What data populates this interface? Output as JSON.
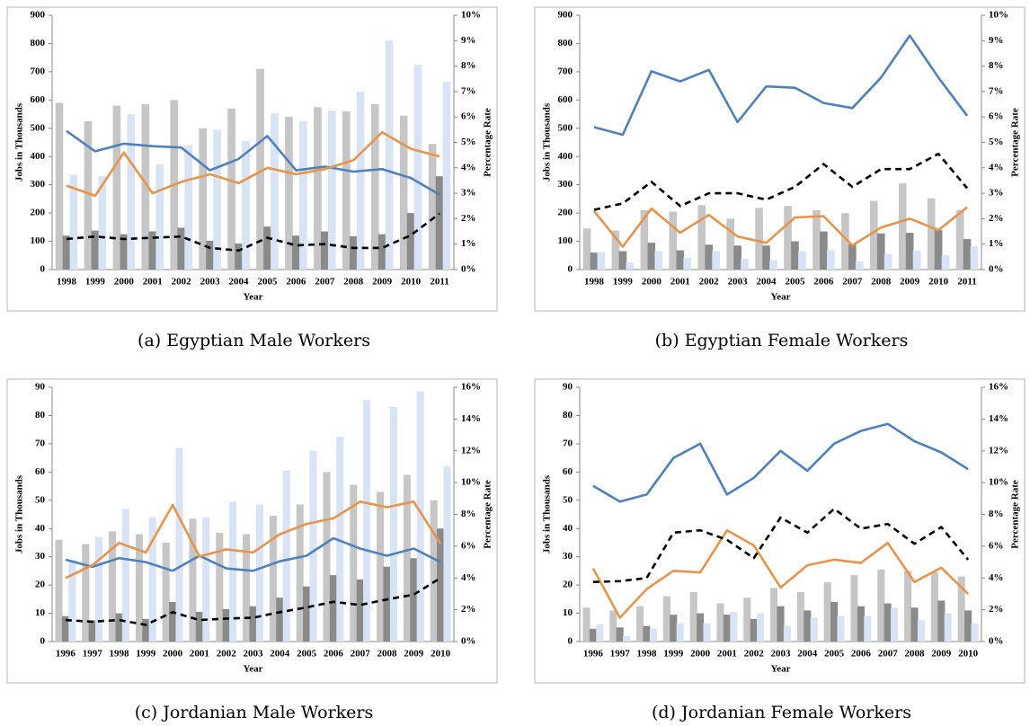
{
  "chart_data": [
    {
      "type": "combo",
      "caption": "(a) Egyptian Male Workers",
      "xlabel": "Year",
      "ylabel": "Jobs in Thousands",
      "y2label": "Percentage Rate",
      "categories": [
        "1998",
        "1999",
        "2000",
        "2001",
        "2002",
        "2003",
        "2004",
        "2005",
        "2006",
        "2007",
        "2008",
        "2009",
        "2010",
        "2011"
      ],
      "ylim": [
        0,
        900
      ],
      "yticks": [
        0,
        100,
        200,
        300,
        400,
        500,
        600,
        700,
        800,
        900
      ],
      "y2lim": [
        0,
        10
      ],
      "y2ticks": [
        {
          "value": 0,
          "label": "0%"
        },
        {
          "value": 1,
          "label": "1%"
        },
        {
          "value": 2,
          "label": "2%"
        },
        {
          "value": 3,
          "label": "3%"
        },
        {
          "value": 4,
          "label": "4%"
        },
        {
          "value": 5,
          "label": "5%"
        },
        {
          "value": 6,
          "label": "6%"
        },
        {
          "value": 7,
          "label": "7%"
        },
        {
          "value": 8,
          "label": "8%"
        },
        {
          "value": 9,
          "label": "9%"
        },
        {
          "value": 10,
          "label": "10%"
        }
      ],
      "grid": false,
      "series": [
        {
          "type": "bar",
          "color": "#c6c6c6",
          "values": [
            590,
            525,
            580,
            585,
            600,
            500,
            570,
            710,
            540,
            575,
            560,
            585,
            545,
            445
          ]
        },
        {
          "type": "bar",
          "color": "#8a8a8a",
          "values": [
            120,
            138,
            125,
            135,
            148,
            102,
            92,
            152,
            120,
            135,
            118,
            125,
            200,
            330
          ]
        },
        {
          "type": "bar",
          "color": "#d8e3f5",
          "values": [
            335,
            330,
            550,
            372,
            440,
            495,
            455,
            553,
            525,
            562,
            630,
            810,
            725,
            665
          ]
        },
        {
          "type": "line",
          "axis": "y2",
          "color": "#4f81bd",
          "values": [
            5.45,
            4.65,
            4.95,
            4.85,
            4.8,
            3.9,
            4.35,
            5.25,
            3.9,
            4.05,
            3.85,
            3.95,
            3.6,
            2.95
          ]
        },
        {
          "type": "line",
          "axis": "y2",
          "color": "#e8944a",
          "values": [
            3.3,
            2.9,
            4.6,
            3.0,
            3.45,
            3.75,
            3.4,
            4.0,
            3.75,
            3.95,
            4.3,
            5.4,
            4.75,
            4.45
          ]
        },
        {
          "type": "line",
          "axis": "y2",
          "color": "#000000",
          "dash": true,
          "values": [
            1.2,
            1.3,
            1.2,
            1.25,
            1.3,
            0.85,
            0.75,
            1.25,
            0.95,
            1.0,
            0.85,
            0.85,
            1.35,
            2.2
          ]
        }
      ]
    },
    {
      "type": "combo",
      "caption": "(b) Egyptian Female Workers",
      "xlabel": "Year",
      "ylabel": "Jobs in Thousands",
      "y2label": "Percentage Rate",
      "categories": [
        "1998",
        "1999",
        "2000",
        "2001",
        "2002",
        "2003",
        "2004",
        "2005",
        "2006",
        "2007",
        "2008",
        "2009",
        "2010",
        "2011"
      ],
      "ylim": [
        0,
        900
      ],
      "yticks": [
        0,
        100,
        200,
        300,
        400,
        500,
        600,
        700,
        800,
        900
      ],
      "y2lim": [
        0,
        10
      ],
      "y2ticks": [
        {
          "value": 0,
          "label": "0%"
        },
        {
          "value": 1,
          "label": "1%"
        },
        {
          "value": 2,
          "label": "2%"
        },
        {
          "value": 3,
          "label": "3%"
        },
        {
          "value": 4,
          "label": "4%"
        },
        {
          "value": 5,
          "label": "5%"
        },
        {
          "value": 6,
          "label": "6%"
        },
        {
          "value": 7,
          "label": "7%"
        },
        {
          "value": 8,
          "label": "8%"
        },
        {
          "value": 9,
          "label": "9%"
        },
        {
          "value": 10,
          "label": "10%"
        }
      ],
      "grid": false,
      "series": [
        {
          "type": "bar",
          "color": "#c6c6c6",
          "values": [
            145,
            138,
            210,
            205,
            228,
            180,
            218,
            225,
            210,
            200,
            243,
            305,
            252,
            210
          ]
        },
        {
          "type": "bar",
          "color": "#8a8a8a",
          "values": [
            60,
            65,
            95,
            68,
            88,
            85,
            85,
            100,
            135,
            90,
            128,
            130,
            140,
            108
          ]
        },
        {
          "type": "bar",
          "color": "#d8e3f5",
          "values": [
            62,
            25,
            65,
            42,
            65,
            38,
            32,
            65,
            68,
            28,
            55,
            68,
            52,
            82
          ]
        },
        {
          "type": "line",
          "axis": "y2",
          "color": "#4f81bd",
          "values": [
            5.6,
            5.3,
            7.8,
            7.4,
            7.85,
            5.8,
            7.2,
            7.15,
            6.55,
            6.35,
            7.55,
            9.2,
            7.55,
            6.05
          ]
        },
        {
          "type": "line",
          "axis": "y2",
          "color": "#e8944a",
          "values": [
            2.3,
            0.9,
            2.4,
            1.45,
            2.15,
            1.3,
            1.05,
            2.05,
            2.1,
            0.95,
            1.65,
            2.0,
            1.55,
            2.45
          ]
        },
        {
          "type": "line",
          "axis": "y2",
          "color": "#000000",
          "dash": true,
          "values": [
            2.35,
            2.6,
            3.45,
            2.5,
            3.0,
            3.0,
            2.75,
            3.25,
            4.15,
            3.25,
            3.95,
            3.95,
            4.55,
            3.2
          ]
        }
      ]
    },
    {
      "type": "combo",
      "caption": "(c) Jordanian Male Workers",
      "xlabel": "Year",
      "ylabel": "Jobs in Thousands",
      "y2label": "Percentage Rate",
      "categories": [
        "1996",
        "1997",
        "1998",
        "1999",
        "2000",
        "2001",
        "2002",
        "2003",
        "2004",
        "2005",
        "2006",
        "2007",
        "2008",
        "2009",
        "2010"
      ],
      "ylim": [
        0,
        90
      ],
      "yticks": [
        0,
        10,
        20,
        30,
        40,
        50,
        60,
        70,
        80,
        90
      ],
      "y2lim": [
        0,
        16
      ],
      "y2ticks": [
        {
          "value": 0,
          "label": "0%"
        },
        {
          "value": 2,
          "label": "2%"
        },
        {
          "value": 4,
          "label": "4%"
        },
        {
          "value": 6,
          "label": "6%"
        },
        {
          "value": 8,
          "label": "8%"
        },
        {
          "value": 10,
          "label": "10%"
        },
        {
          "value": 12,
          "label": "12%"
        },
        {
          "value": 14,
          "label": "14%"
        },
        {
          "value": 16,
          "label": "16%"
        }
      ],
      "grid": false,
      "series": [
        {
          "type": "bar",
          "color": "#c6c6c6",
          "values": [
            36,
            34.5,
            39,
            38,
            35,
            43.5,
            38.5,
            38,
            44.5,
            48.5,
            60,
            55.5,
            53,
            59,
            50
          ]
        },
        {
          "type": "bar",
          "color": "#8a8a8a",
          "values": [
            9,
            7.5,
            10,
            8,
            14,
            10.5,
            11.5,
            12.5,
            15.5,
            19.5,
            23.5,
            22,
            26.5,
            29.5,
            40
          ]
        },
        {
          "type": "bar",
          "color": "#d8e3f5",
          "values": [
            29,
            37,
            47,
            44,
            68.5,
            44,
            49.5,
            48.5,
            60.5,
            67.5,
            72.5,
            85.5,
            83,
            88.5,
            62
          ]
        },
        {
          "type": "line",
          "axis": "y2",
          "color": "#4f81bd",
          "values": [
            5.15,
            4.7,
            5.25,
            5.0,
            4.45,
            5.4,
            4.6,
            4.45,
            5.05,
            5.4,
            6.5,
            5.85,
            5.4,
            5.85,
            5.0
          ]
        },
        {
          "type": "line",
          "axis": "y2",
          "color": "#e8944a",
          "values": [
            4.0,
            4.8,
            6.2,
            5.6,
            8.6,
            5.35,
            5.8,
            5.6,
            6.75,
            7.4,
            7.75,
            8.8,
            8.45,
            8.8,
            6.15
          ]
        },
        {
          "type": "line",
          "axis": "y2",
          "color": "#000000",
          "dash": true,
          "values": [
            1.35,
            1.25,
            1.35,
            1.05,
            1.85,
            1.35,
            1.45,
            1.5,
            1.85,
            2.15,
            2.5,
            2.3,
            2.65,
            2.95,
            4.0
          ]
        }
      ]
    },
    {
      "type": "combo",
      "caption": "(d) Jordanian Female Workers",
      "xlabel": "Year",
      "ylabel": "Jobs in Thousands",
      "y2label": "Percentage Rate",
      "categories": [
        "1996",
        "1997",
        "1998",
        "1999",
        "2000",
        "2001",
        "2002",
        "2003",
        "2004",
        "2005",
        "2006",
        "2007",
        "2008",
        "2009",
        "2010"
      ],
      "ylim": [
        0,
        90
      ],
      "yticks": [
        0,
        10,
        20,
        30,
        40,
        50,
        60,
        70,
        80,
        90
      ],
      "y2lim": [
        0,
        16
      ],
      "y2ticks": [
        {
          "value": 0,
          "label": "0%"
        },
        {
          "value": 2,
          "label": "2%"
        },
        {
          "value": 4,
          "label": "4%"
        },
        {
          "value": 6,
          "label": "6%"
        },
        {
          "value": 8,
          "label": "8%"
        },
        {
          "value": 10,
          "label": "10%"
        },
        {
          "value": 12,
          "label": "12%"
        },
        {
          "value": 14,
          "label": "14%"
        },
        {
          "value": 16,
          "label": "16%"
        }
      ],
      "grid": false,
      "series": [
        {
          "type": "bar",
          "color": "#c6c6c6",
          "values": [
            12,
            11,
            12.5,
            16,
            17.5,
            13.5,
            15.5,
            19,
            17.5,
            21,
            23.5,
            25.5,
            25,
            24.5,
            23
          ]
        },
        {
          "type": "bar",
          "color": "#8a8a8a",
          "values": [
            4.5,
            5,
            5.5,
            9.5,
            10,
            9.5,
            8,
            12.5,
            11,
            14,
            12.5,
            13.5,
            12,
            14.5,
            11
          ]
        },
        {
          "type": "bar",
          "color": "#d8e3f5",
          "values": [
            6,
            2,
            4.5,
            6.5,
            6.5,
            10.5,
            10,
            5.5,
            8.5,
            9,
            9,
            12,
            7.5,
            10,
            6.5
          ]
        },
        {
          "type": "line",
          "axis": "y2",
          "color": "#4f81bd",
          "values": [
            9.8,
            8.8,
            9.25,
            11.55,
            12.45,
            9.25,
            10.3,
            12.0,
            10.75,
            12.45,
            13.25,
            13.7,
            12.6,
            11.9,
            10.85
          ]
        },
        {
          "type": "line",
          "axis": "y2",
          "color": "#e8944a",
          "values": [
            4.6,
            1.5,
            3.3,
            4.45,
            4.35,
            7.0,
            6.05,
            3.4,
            4.8,
            5.15,
            4.95,
            6.2,
            3.75,
            4.65,
            3.0
          ]
        },
        {
          "type": "line",
          "axis": "y2",
          "color": "#000000",
          "dash": true,
          "values": [
            3.75,
            3.8,
            4.0,
            6.85,
            7.0,
            6.4,
            5.25,
            7.8,
            6.85,
            8.35,
            7.1,
            7.4,
            6.15,
            7.2,
            5.15
          ]
        }
      ]
    }
  ]
}
